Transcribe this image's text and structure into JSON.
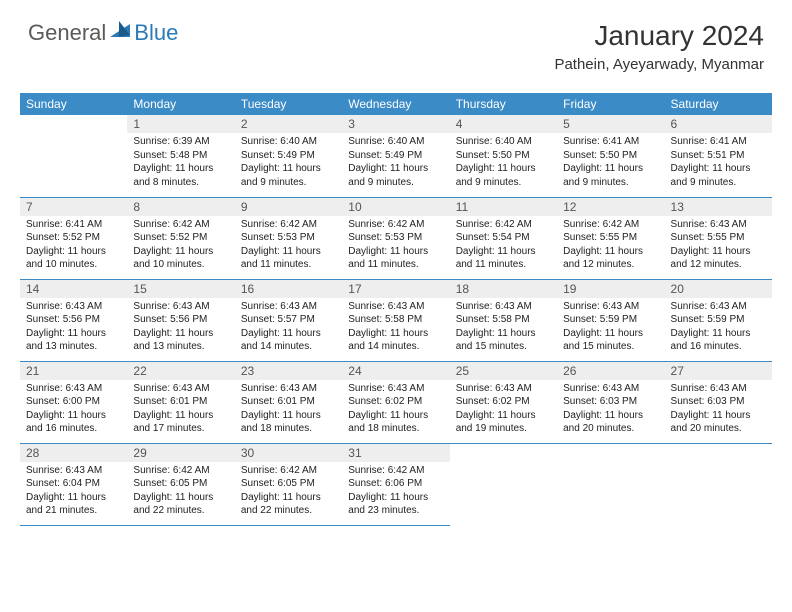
{
  "logo": {
    "general": "General",
    "blue": "Blue"
  },
  "title": "January 2024",
  "location": "Pathein, Ayeyarwady, Myanmar",
  "colors": {
    "header_bg": "#3b8bc7",
    "header_text": "#ffffff",
    "daynum_bg": "#eeeeee",
    "row_border": "#3b8bc7",
    "logo_gray": "#5a5a5a",
    "logo_blue": "#2a7ab8"
  },
  "weekdays": [
    "Sunday",
    "Monday",
    "Tuesday",
    "Wednesday",
    "Thursday",
    "Friday",
    "Saturday"
  ],
  "start_offset": 1,
  "days": [
    {
      "n": 1,
      "sunrise": "6:39 AM",
      "sunset": "5:48 PM",
      "daylight": "11 hours and 8 minutes."
    },
    {
      "n": 2,
      "sunrise": "6:40 AM",
      "sunset": "5:49 PM",
      "daylight": "11 hours and 9 minutes."
    },
    {
      "n": 3,
      "sunrise": "6:40 AM",
      "sunset": "5:49 PM",
      "daylight": "11 hours and 9 minutes."
    },
    {
      "n": 4,
      "sunrise": "6:40 AM",
      "sunset": "5:50 PM",
      "daylight": "11 hours and 9 minutes."
    },
    {
      "n": 5,
      "sunrise": "6:41 AM",
      "sunset": "5:50 PM",
      "daylight": "11 hours and 9 minutes."
    },
    {
      "n": 6,
      "sunrise": "6:41 AM",
      "sunset": "5:51 PM",
      "daylight": "11 hours and 9 minutes."
    },
    {
      "n": 7,
      "sunrise": "6:41 AM",
      "sunset": "5:52 PM",
      "daylight": "11 hours and 10 minutes."
    },
    {
      "n": 8,
      "sunrise": "6:42 AM",
      "sunset": "5:52 PM",
      "daylight": "11 hours and 10 minutes."
    },
    {
      "n": 9,
      "sunrise": "6:42 AM",
      "sunset": "5:53 PM",
      "daylight": "11 hours and 11 minutes."
    },
    {
      "n": 10,
      "sunrise": "6:42 AM",
      "sunset": "5:53 PM",
      "daylight": "11 hours and 11 minutes."
    },
    {
      "n": 11,
      "sunrise": "6:42 AM",
      "sunset": "5:54 PM",
      "daylight": "11 hours and 11 minutes."
    },
    {
      "n": 12,
      "sunrise": "6:42 AM",
      "sunset": "5:55 PM",
      "daylight": "11 hours and 12 minutes."
    },
    {
      "n": 13,
      "sunrise": "6:43 AM",
      "sunset": "5:55 PM",
      "daylight": "11 hours and 12 minutes."
    },
    {
      "n": 14,
      "sunrise": "6:43 AM",
      "sunset": "5:56 PM",
      "daylight": "11 hours and 13 minutes."
    },
    {
      "n": 15,
      "sunrise": "6:43 AM",
      "sunset": "5:56 PM",
      "daylight": "11 hours and 13 minutes."
    },
    {
      "n": 16,
      "sunrise": "6:43 AM",
      "sunset": "5:57 PM",
      "daylight": "11 hours and 14 minutes."
    },
    {
      "n": 17,
      "sunrise": "6:43 AM",
      "sunset": "5:58 PM",
      "daylight": "11 hours and 14 minutes."
    },
    {
      "n": 18,
      "sunrise": "6:43 AM",
      "sunset": "5:58 PM",
      "daylight": "11 hours and 15 minutes."
    },
    {
      "n": 19,
      "sunrise": "6:43 AM",
      "sunset": "5:59 PM",
      "daylight": "11 hours and 15 minutes."
    },
    {
      "n": 20,
      "sunrise": "6:43 AM",
      "sunset": "5:59 PM",
      "daylight": "11 hours and 16 minutes."
    },
    {
      "n": 21,
      "sunrise": "6:43 AM",
      "sunset": "6:00 PM",
      "daylight": "11 hours and 16 minutes."
    },
    {
      "n": 22,
      "sunrise": "6:43 AM",
      "sunset": "6:01 PM",
      "daylight": "11 hours and 17 minutes."
    },
    {
      "n": 23,
      "sunrise": "6:43 AM",
      "sunset": "6:01 PM",
      "daylight": "11 hours and 18 minutes."
    },
    {
      "n": 24,
      "sunrise": "6:43 AM",
      "sunset": "6:02 PM",
      "daylight": "11 hours and 18 minutes."
    },
    {
      "n": 25,
      "sunrise": "6:43 AM",
      "sunset": "6:02 PM",
      "daylight": "11 hours and 19 minutes."
    },
    {
      "n": 26,
      "sunrise": "6:43 AM",
      "sunset": "6:03 PM",
      "daylight": "11 hours and 20 minutes."
    },
    {
      "n": 27,
      "sunrise": "6:43 AM",
      "sunset": "6:03 PM",
      "daylight": "11 hours and 20 minutes."
    },
    {
      "n": 28,
      "sunrise": "6:43 AM",
      "sunset": "6:04 PM",
      "daylight": "11 hours and 21 minutes."
    },
    {
      "n": 29,
      "sunrise": "6:42 AM",
      "sunset": "6:05 PM",
      "daylight": "11 hours and 22 minutes."
    },
    {
      "n": 30,
      "sunrise": "6:42 AM",
      "sunset": "6:05 PM",
      "daylight": "11 hours and 22 minutes."
    },
    {
      "n": 31,
      "sunrise": "6:42 AM",
      "sunset": "6:06 PM",
      "daylight": "11 hours and 23 minutes."
    }
  ],
  "labels": {
    "sunrise": "Sunrise:",
    "sunset": "Sunset:",
    "daylight": "Daylight:"
  }
}
